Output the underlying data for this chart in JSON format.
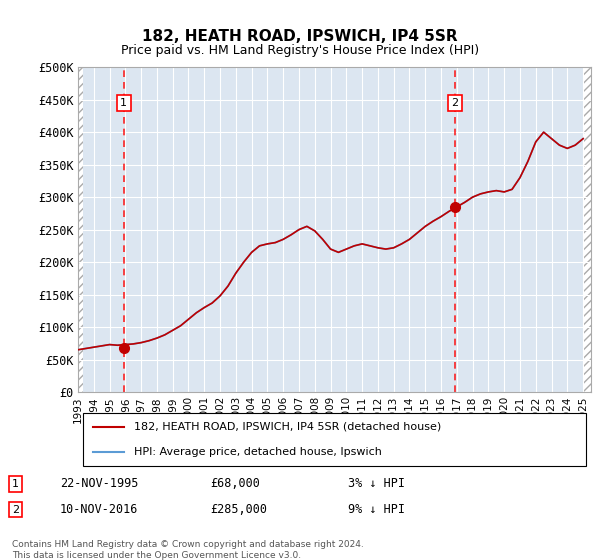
{
  "title1": "182, HEATH ROAD, IPSWICH, IP4 5SR",
  "title2": "Price paid vs. HM Land Registry's House Price Index (HPI)",
  "xlabel": "",
  "ylabel": "",
  "ylim": [
    0,
    500000
  ],
  "yticks": [
    0,
    50000,
    100000,
    150000,
    200000,
    250000,
    300000,
    350000,
    400000,
    450000,
    500000
  ],
  "ytick_labels": [
    "£0",
    "£50K",
    "£100K",
    "£150K",
    "£200K",
    "£250K",
    "£300K",
    "£350K",
    "£400K",
    "£450K",
    "£500K"
  ],
  "xlim_start": 1993.0,
  "xlim_end": 2025.5,
  "hpi_color": "#5b9bd5",
  "price_color": "#c00000",
  "marker_color": "#c00000",
  "background_plot": "#dce6f1",
  "background_hatch": "#ffffff",
  "grid_color": "#ffffff",
  "sale1_x": 1995.896,
  "sale1_y": 68000,
  "sale1_label": "1",
  "sale1_date": "22-NOV-1995",
  "sale1_price": "£68,000",
  "sale1_note": "3% ↓ HPI",
  "sale2_x": 2016.863,
  "sale2_y": 285000,
  "sale2_label": "2",
  "sale2_date": "10-NOV-2016",
  "sale2_price": "£285,000",
  "sale2_note": "9% ↓ HPI",
  "legend_line1": "182, HEATH ROAD, IPSWICH, IP4 5SR (detached house)",
  "legend_line2": "HPI: Average price, detached house, Ipswich",
  "footer": "Contains HM Land Registry data © Crown copyright and database right 2024.\nThis data is licensed under the Open Government Licence v3.0.",
  "hpi_years": [
    1993,
    1993.5,
    1994,
    1994.5,
    1995,
    1995.5,
    1996,
    1996.5,
    1997,
    1997.5,
    1998,
    1998.5,
    1999,
    1999.5,
    2000,
    2000.5,
    2001,
    2001.5,
    2002,
    2002.5,
    2003,
    2003.5,
    2004,
    2004.5,
    2005,
    2005.5,
    2006,
    2006.5,
    2007,
    2007.5,
    2008,
    2008.5,
    2009,
    2009.5,
    2010,
    2010.5,
    2011,
    2011.5,
    2012,
    2012.5,
    2013,
    2013.5,
    2014,
    2014.5,
    2015,
    2015.5,
    2016,
    2016.5,
    2017,
    2017.5,
    2018,
    2018.5,
    2019,
    2019.5,
    2020,
    2020.5,
    2021,
    2021.5,
    2022,
    2022.5,
    2023,
    2023.5,
    2024,
    2024.5,
    2025
  ],
  "hpi_values": [
    65000,
    67000,
    69000,
    71000,
    73000,
    72000,
    73000,
    74000,
    76000,
    79000,
    83000,
    88000,
    95000,
    102000,
    112000,
    122000,
    130000,
    137000,
    148000,
    163000,
    183000,
    200000,
    215000,
    225000,
    228000,
    230000,
    235000,
    242000,
    250000,
    255000,
    248000,
    235000,
    220000,
    215000,
    220000,
    225000,
    228000,
    225000,
    222000,
    220000,
    222000,
    228000,
    235000,
    245000,
    255000,
    263000,
    270000,
    278000,
    285000,
    292000,
    300000,
    305000,
    308000,
    310000,
    308000,
    312000,
    330000,
    355000,
    385000,
    400000,
    390000,
    380000,
    375000,
    380000,
    390000
  ],
  "price_years": [
    1993,
    1993.5,
    1994,
    1994.5,
    1995,
    1995.5,
    1996,
    1996.5,
    1997,
    1997.5,
    1998,
    1998.5,
    1999,
    1999.5,
    2000,
    2000.5,
    2001,
    2001.5,
    2002,
    2002.5,
    2003,
    2003.5,
    2004,
    2004.5,
    2005,
    2005.5,
    2006,
    2006.5,
    2007,
    2007.5,
    2008,
    2008.5,
    2009,
    2009.5,
    2010,
    2010.5,
    2011,
    2011.5,
    2012,
    2012.5,
    2013,
    2013.5,
    2014,
    2014.5,
    2015,
    2015.5,
    2016,
    2016.5,
    2017,
    2017.5,
    2018,
    2018.5,
    2019,
    2019.5,
    2020,
    2020.5,
    2021,
    2021.5,
    2022,
    2022.5,
    2023,
    2023.5,
    2024,
    2024.5,
    2025
  ],
  "price_values": [
    65000,
    67000,
    69000,
    71000,
    73000,
    72000,
    73000,
    74000,
    76000,
    79000,
    83000,
    88000,
    95000,
    102000,
    112000,
    122000,
    130000,
    137000,
    148000,
    163000,
    183000,
    200000,
    215000,
    225000,
    228000,
    230000,
    235000,
    242000,
    250000,
    255000,
    248000,
    235000,
    220000,
    215000,
    220000,
    225000,
    228000,
    225000,
    222000,
    220000,
    222000,
    228000,
    235000,
    245000,
    255000,
    263000,
    270000,
    278000,
    285000,
    292000,
    300000,
    305000,
    308000,
    310000,
    308000,
    312000,
    330000,
    355000,
    385000,
    400000,
    390000,
    380000,
    375000,
    380000,
    390000
  ]
}
